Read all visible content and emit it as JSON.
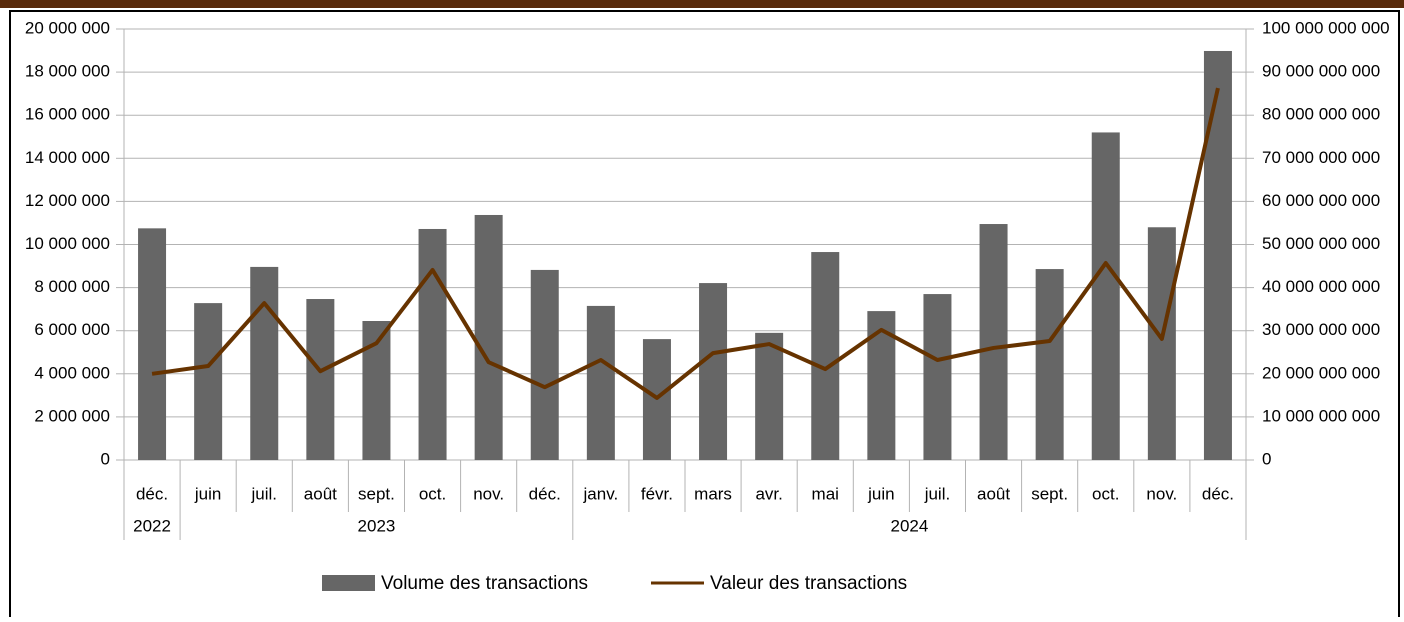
{
  "chart_data": {
    "type": "bar_line",
    "categories": [
      "déc.",
      "juin",
      "juil.",
      "août",
      "sept.",
      "oct.",
      "nov.",
      "déc.",
      "janv.",
      "févr.",
      "mars",
      "avr.",
      "mai",
      "juin",
      "juil.",
      "août",
      "sept.",
      "oct.",
      "nov.",
      "déc."
    ],
    "years": [
      "2022",
      "2023",
      "2023",
      "2023",
      "2023",
      "2023",
      "2023",
      "2023",
      "2024",
      "2024",
      "2024",
      "2024",
      "2024",
      "2024",
      "2024",
      "2024",
      "2024",
      "2024",
      "2024",
      "2024"
    ],
    "series": [
      {
        "name": "Volume des transactions",
        "type": "bar",
        "color": "#666666",
        "values": [
          10750000,
          7280000,
          8960000,
          7470000,
          6450000,
          10720000,
          11370000,
          8820000,
          7150000,
          5610000,
          8210000,
          5900000,
          9650000,
          6910000,
          7700000,
          10950000,
          8860000,
          15200000,
          10800000,
          18980000
        ]
      },
      {
        "name": "Valeur des transactions",
        "type": "line",
        "axis": "y2",
        "color": "#663300",
        "values": [
          20000000000,
          21800000000,
          36400000000,
          20600000000,
          27100000000,
          44100000000,
          22700000000,
          16900000000,
          23200000000,
          14400000000,
          24800000000,
          26900000000,
          21100000000,
          30200000000,
          23200000000,
          26000000000,
          27600000000,
          45700000000,
          28100000000,
          86300000000
        ]
      }
    ],
    "ylim": [
      0,
      20000000
    ],
    "yticks": [
      0,
      {
        "value": 2000000,
        "label": "2 000 000"
      },
      {
        "value": 4000000,
        "label": "4 000 000"
      },
      {
        "value": 6000000,
        "label": "6 000 000"
      },
      {
        "value": 8000000,
        "label": "8 000 000"
      },
      {
        "value": 10000000,
        "label": "10 000 000"
      },
      {
        "value": 12000000,
        "label": "12 000 000"
      },
      {
        "value": 14000000,
        "label": "14 000 000"
      },
      {
        "value": 16000000,
        "label": "16 000 000"
      },
      {
        "value": 18000000,
        "label": "18 000 000"
      },
      {
        "value": 20000000,
        "label": "20 000 000"
      }
    ],
    "y2lim": [
      0,
      100000000000
    ],
    "y2ticks": [
      0,
      {
        "value": 10000000000,
        "label": "10 000 000 000"
      },
      {
        "value": 20000000000,
        "label": "20 000 000 000"
      },
      {
        "value": 30000000000,
        "label": "30 000 000 000"
      },
      {
        "value": 40000000000,
        "label": "40 000 000 000"
      },
      {
        "value": 50000000000,
        "label": "50 000 000 000"
      },
      {
        "value": 60000000000,
        "label": "60 000 000 000"
      },
      {
        "value": 70000000000,
        "label": "70 000 000 000"
      },
      {
        "value": 80000000000,
        "label": "80 000 000 000"
      },
      {
        "value": 90000000000,
        "label": "90 000 000 000"
      },
      {
        "value": 100000000000,
        "label": "100 000 000 000"
      }
    ],
    "grid": true,
    "legend": "bottom"
  }
}
